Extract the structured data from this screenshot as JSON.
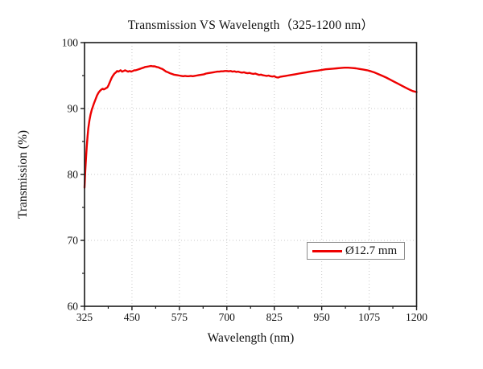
{
  "chart_data": {
    "type": "line",
    "title": "Transmission VS Wavelength（325-1200 nm）",
    "xlabel": "Wavelength (nm)",
    "ylabel": "Transmission (%)",
    "xlim": [
      325,
      1200
    ],
    "ylim": [
      60,
      100
    ],
    "x_major_ticks": [
      325,
      450,
      575,
      700,
      825,
      950,
      1075,
      1200
    ],
    "x_minor_ticks": [
      387.5,
      512.5,
      637.5,
      762.5,
      887.5,
      1012.5,
      1137.5
    ],
    "y_major_ticks": [
      60,
      70,
      80,
      90,
      100
    ],
    "y_minor_ticks": [
      65,
      75,
      85,
      95
    ],
    "grid": "dotted gridlines at major ticks, light gray",
    "gridline_color": "#c8c8c8",
    "frame_color": "#1a1a1a",
    "legend": {
      "position": "right-center-inside",
      "entries": [
        {
          "label": "Ø12.7 mm",
          "color": "#ee0000"
        }
      ]
    },
    "series": [
      {
        "name": "Ø12.7 mm",
        "color": "#ee0000",
        "points": [
          [
            325,
            78.0
          ],
          [
            327,
            80.5
          ],
          [
            329,
            82.6
          ],
          [
            331,
            84.3
          ],
          [
            333,
            85.8
          ],
          [
            335,
            87.0
          ],
          [
            338,
            88.2
          ],
          [
            341,
            89.1
          ],
          [
            344,
            89.8
          ],
          [
            347,
            90.3
          ],
          [
            350,
            90.8
          ],
          [
            354,
            91.4
          ],
          [
            358,
            92.0
          ],
          [
            362,
            92.4
          ],
          [
            366,
            92.7
          ],
          [
            370,
            92.9
          ],
          [
            373,
            93.0
          ],
          [
            376,
            92.9
          ],
          [
            379,
            93.0
          ],
          [
            382,
            93.1
          ],
          [
            385,
            93.2
          ],
          [
            388,
            93.5
          ],
          [
            391,
            93.9
          ],
          [
            394,
            94.3
          ],
          [
            397,
            94.7
          ],
          [
            400,
            95.0
          ],
          [
            404,
            95.3
          ],
          [
            408,
            95.5
          ],
          [
            411,
            95.7
          ],
          [
            414,
            95.6
          ],
          [
            417,
            95.7
          ],
          [
            420,
            95.8
          ],
          [
            424,
            95.6
          ],
          [
            428,
            95.7
          ],
          [
            432,
            95.8
          ],
          [
            436,
            95.7
          ],
          [
            440,
            95.6
          ],
          [
            444,
            95.7
          ],
          [
            448,
            95.6
          ],
          [
            452,
            95.7
          ],
          [
            456,
            95.8
          ],
          [
            460,
            95.8
          ],
          [
            465,
            95.9
          ],
          [
            470,
            96.0
          ],
          [
            475,
            96.1
          ],
          [
            480,
            96.2
          ],
          [
            485,
            96.3
          ],
          [
            490,
            96.35
          ],
          [
            495,
            96.4
          ],
          [
            500,
            96.45
          ],
          [
            505,
            96.4
          ],
          [
            510,
            96.4
          ],
          [
            515,
            96.3
          ],
          [
            520,
            96.25
          ],
          [
            525,
            96.1
          ],
          [
            530,
            96.0
          ],
          [
            535,
            95.8
          ],
          [
            540,
            95.6
          ],
          [
            545,
            95.5
          ],
          [
            550,
            95.35
          ],
          [
            555,
            95.25
          ],
          [
            560,
            95.15
          ],
          [
            565,
            95.1
          ],
          [
            570,
            95.05
          ],
          [
            575,
            95.0
          ],
          [
            580,
            94.95
          ],
          [
            585,
            94.9
          ],
          [
            590,
            94.95
          ],
          [
            595,
            94.9
          ],
          [
            600,
            94.9
          ],
          [
            605,
            94.95
          ],
          [
            610,
            94.9
          ],
          [
            615,
            94.95
          ],
          [
            620,
            95.0
          ],
          [
            625,
            95.05
          ],
          [
            630,
            95.1
          ],
          [
            635,
            95.15
          ],
          [
            640,
            95.2
          ],
          [
            645,
            95.3
          ],
          [
            650,
            95.35
          ],
          [
            655,
            95.4
          ],
          [
            660,
            95.45
          ],
          [
            665,
            95.5
          ],
          [
            670,
            95.55
          ],
          [
            675,
            95.6
          ],
          [
            680,
            95.6
          ],
          [
            685,
            95.65
          ],
          [
            690,
            95.65
          ],
          [
            695,
            95.7
          ],
          [
            700,
            95.7
          ],
          [
            705,
            95.65
          ],
          [
            710,
            95.7
          ],
          [
            715,
            95.6
          ],
          [
            720,
            95.65
          ],
          [
            725,
            95.55
          ],
          [
            730,
            95.6
          ],
          [
            735,
            95.5
          ],
          [
            740,
            95.45
          ],
          [
            745,
            95.5
          ],
          [
            750,
            95.4
          ],
          [
            755,
            95.35
          ],
          [
            760,
            95.4
          ],
          [
            765,
            95.3
          ],
          [
            770,
            95.25
          ],
          [
            775,
            95.3
          ],
          [
            780,
            95.2
          ],
          [
            785,
            95.1
          ],
          [
            790,
            95.15
          ],
          [
            795,
            95.05
          ],
          [
            800,
            95.0
          ],
          [
            805,
            94.95
          ],
          [
            810,
            95.0
          ],
          [
            815,
            94.9
          ],
          [
            820,
            94.85
          ],
          [
            825,
            94.9
          ],
          [
            830,
            94.75
          ],
          [
            835,
            94.7
          ],
          [
            840,
            94.8
          ],
          [
            845,
            94.85
          ],
          [
            850,
            94.9
          ],
          [
            855,
            94.95
          ],
          [
            860,
            95.0
          ],
          [
            870,
            95.1
          ],
          [
            880,
            95.2
          ],
          [
            890,
            95.3
          ],
          [
            900,
            95.4
          ],
          [
            910,
            95.5
          ],
          [
            920,
            95.6
          ],
          [
            930,
            95.7
          ],
          [
            940,
            95.75
          ],
          [
            950,
            95.85
          ],
          [
            960,
            95.95
          ],
          [
            970,
            96.0
          ],
          [
            980,
            96.05
          ],
          [
            990,
            96.1
          ],
          [
            1000,
            96.15
          ],
          [
            1010,
            96.2
          ],
          [
            1020,
            96.2
          ],
          [
            1030,
            96.15
          ],
          [
            1040,
            96.1
          ],
          [
            1050,
            96.0
          ],
          [
            1060,
            95.9
          ],
          [
            1070,
            95.8
          ],
          [
            1080,
            95.65
          ],
          [
            1090,
            95.45
          ],
          [
            1100,
            95.2
          ],
          [
            1110,
            94.95
          ],
          [
            1120,
            94.7
          ],
          [
            1130,
            94.4
          ],
          [
            1140,
            94.1
          ],
          [
            1150,
            93.8
          ],
          [
            1160,
            93.5
          ],
          [
            1170,
            93.2
          ],
          [
            1180,
            92.9
          ],
          [
            1190,
            92.65
          ],
          [
            1200,
            92.5
          ]
        ]
      }
    ]
  }
}
